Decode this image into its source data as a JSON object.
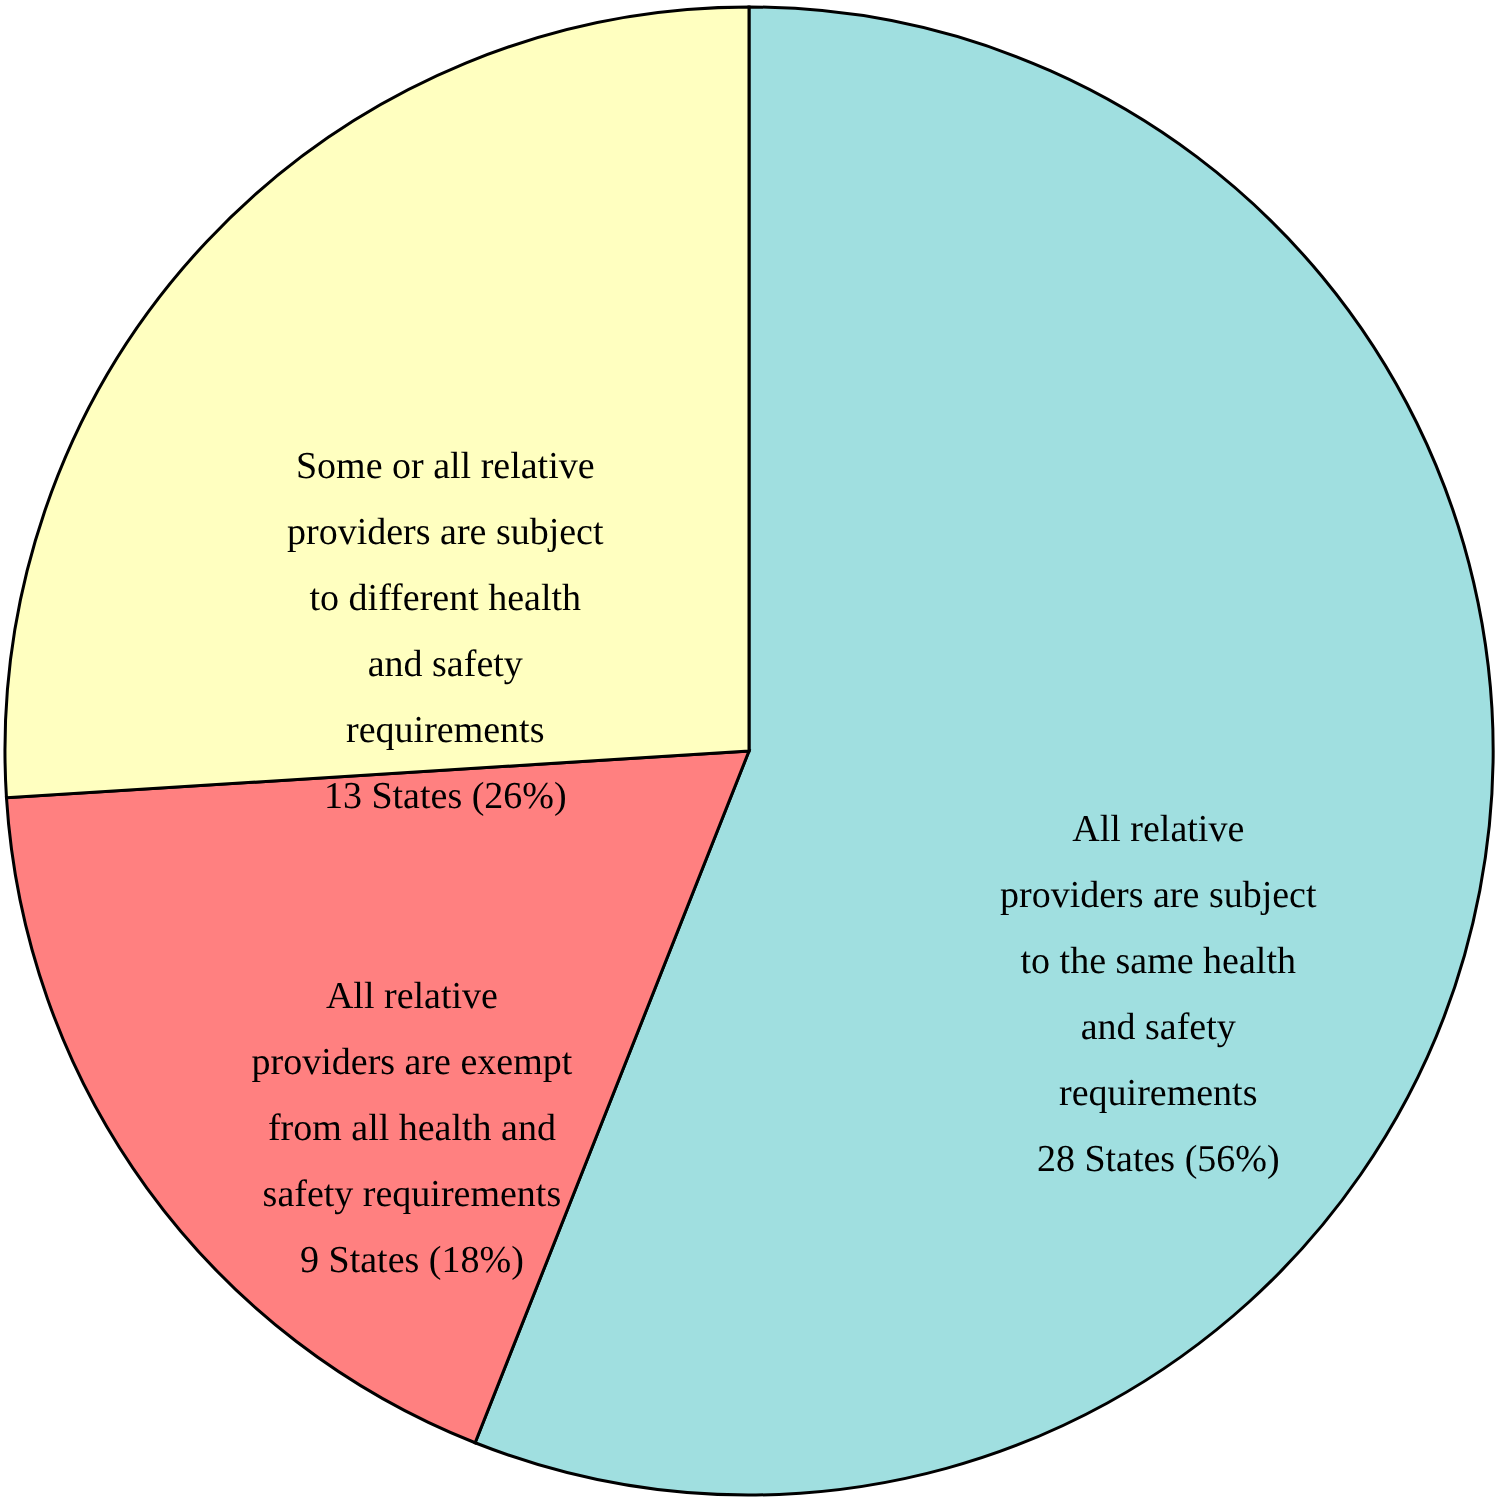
{
  "chart_data": {
    "type": "pie",
    "categories": [
      "All relative providers are subject to the same health and safety requirements",
      "All relative providers are exempt from all health and safety requirements",
      "Some or all relative providers are subject to different health and safety requirements"
    ],
    "values": [
      28,
      9,
      13
    ],
    "value_labels": [
      "28 States (56%)",
      "9 States (18%)",
      "13 States (26%)"
    ],
    "colors": [
      "#a0dfe0",
      "#ff8080",
      "#ffffc0"
    ]
  }
}
